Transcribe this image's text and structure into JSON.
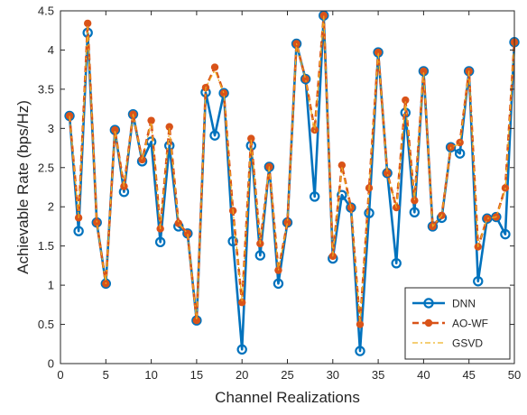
{
  "chart_data": {
    "type": "line",
    "xlabel": "Channel Realizations",
    "ylabel": "Achievable Rate (bps/Hz)",
    "xlim": [
      0,
      50
    ],
    "ylim": [
      0,
      4.5
    ],
    "xticks": [
      "0",
      "5",
      "10",
      "15",
      "20",
      "25",
      "30",
      "35",
      "40",
      "45",
      "50"
    ],
    "yticks": [
      "0",
      "0.5",
      "1",
      "1.5",
      "2",
      "2.5",
      "3",
      "3.5",
      "4",
      "4.5"
    ],
    "grid": false,
    "legend_position": "bottom-right",
    "x": [
      1,
      2,
      3,
      4,
      5,
      6,
      7,
      8,
      9,
      10,
      11,
      12,
      13,
      14,
      15,
      16,
      17,
      18,
      19,
      20,
      21,
      22,
      23,
      24,
      25,
      26,
      27,
      28,
      29,
      30,
      31,
      32,
      33,
      34,
      35,
      36,
      37,
      38,
      39,
      40,
      41,
      42,
      43,
      44,
      45,
      46,
      47,
      48,
      49,
      50
    ],
    "series": [
      {
        "name": "DNN",
        "color": "#0072BD",
        "style": "solid-circle",
        "values": [
          3.16,
          1.69,
          4.22,
          1.8,
          1.02,
          2.98,
          2.19,
          3.18,
          2.58,
          2.83,
          1.55,
          2.78,
          1.75,
          1.66,
          0.55,
          3.46,
          2.91,
          3.45,
          1.56,
          0.18,
          2.78,
          1.38,
          2.51,
          1.02,
          1.8,
          4.08,
          3.63,
          2.13,
          4.44,
          1.34,
          2.15,
          1.99,
          0.16,
          1.92,
          3.97,
          2.43,
          1.28,
          3.2,
          1.93,
          3.73,
          1.75,
          1.86,
          2.76,
          2.68,
          3.73,
          1.05,
          1.85,
          1.87,
          1.65,
          4.1
        ]
      },
      {
        "name": "AO-WF",
        "color": "#D95319",
        "style": "dashed-dot",
        "values": [
          3.16,
          1.86,
          4.34,
          1.8,
          1.02,
          2.98,
          2.26,
          3.18,
          2.6,
          3.1,
          1.72,
          3.02,
          1.79,
          1.66,
          0.55,
          3.52,
          3.78,
          3.45,
          1.95,
          0.78,
          2.87,
          1.53,
          2.51,
          1.19,
          1.8,
          4.08,
          3.63,
          2.98,
          4.44,
          1.37,
          2.53,
          1.99,
          0.5,
          2.24,
          3.97,
          2.43,
          1.99,
          3.36,
          2.08,
          3.73,
          1.75,
          1.89,
          2.76,
          2.82,
          3.73,
          1.49,
          1.85,
          1.87,
          2.24,
          4.1
        ]
      },
      {
        "name": "GSVD",
        "color": "#EDB120",
        "style": "dashdot",
        "values": [
          3.16,
          1.86,
          4.3,
          1.8,
          1.02,
          2.98,
          2.26,
          3.18,
          2.6,
          3.08,
          1.72,
          3.0,
          1.79,
          1.66,
          0.55,
          3.52,
          3.74,
          3.45,
          1.95,
          0.8,
          2.85,
          1.53,
          2.51,
          1.19,
          1.8,
          4.08,
          3.63,
          2.96,
          4.44,
          1.37,
          2.5,
          1.99,
          0.52,
          2.24,
          3.97,
          2.43,
          1.99,
          3.34,
          2.08,
          3.73,
          1.75,
          1.89,
          2.76,
          2.8,
          3.73,
          1.49,
          1.85,
          1.87,
          2.22,
          4.1
        ]
      }
    ]
  }
}
